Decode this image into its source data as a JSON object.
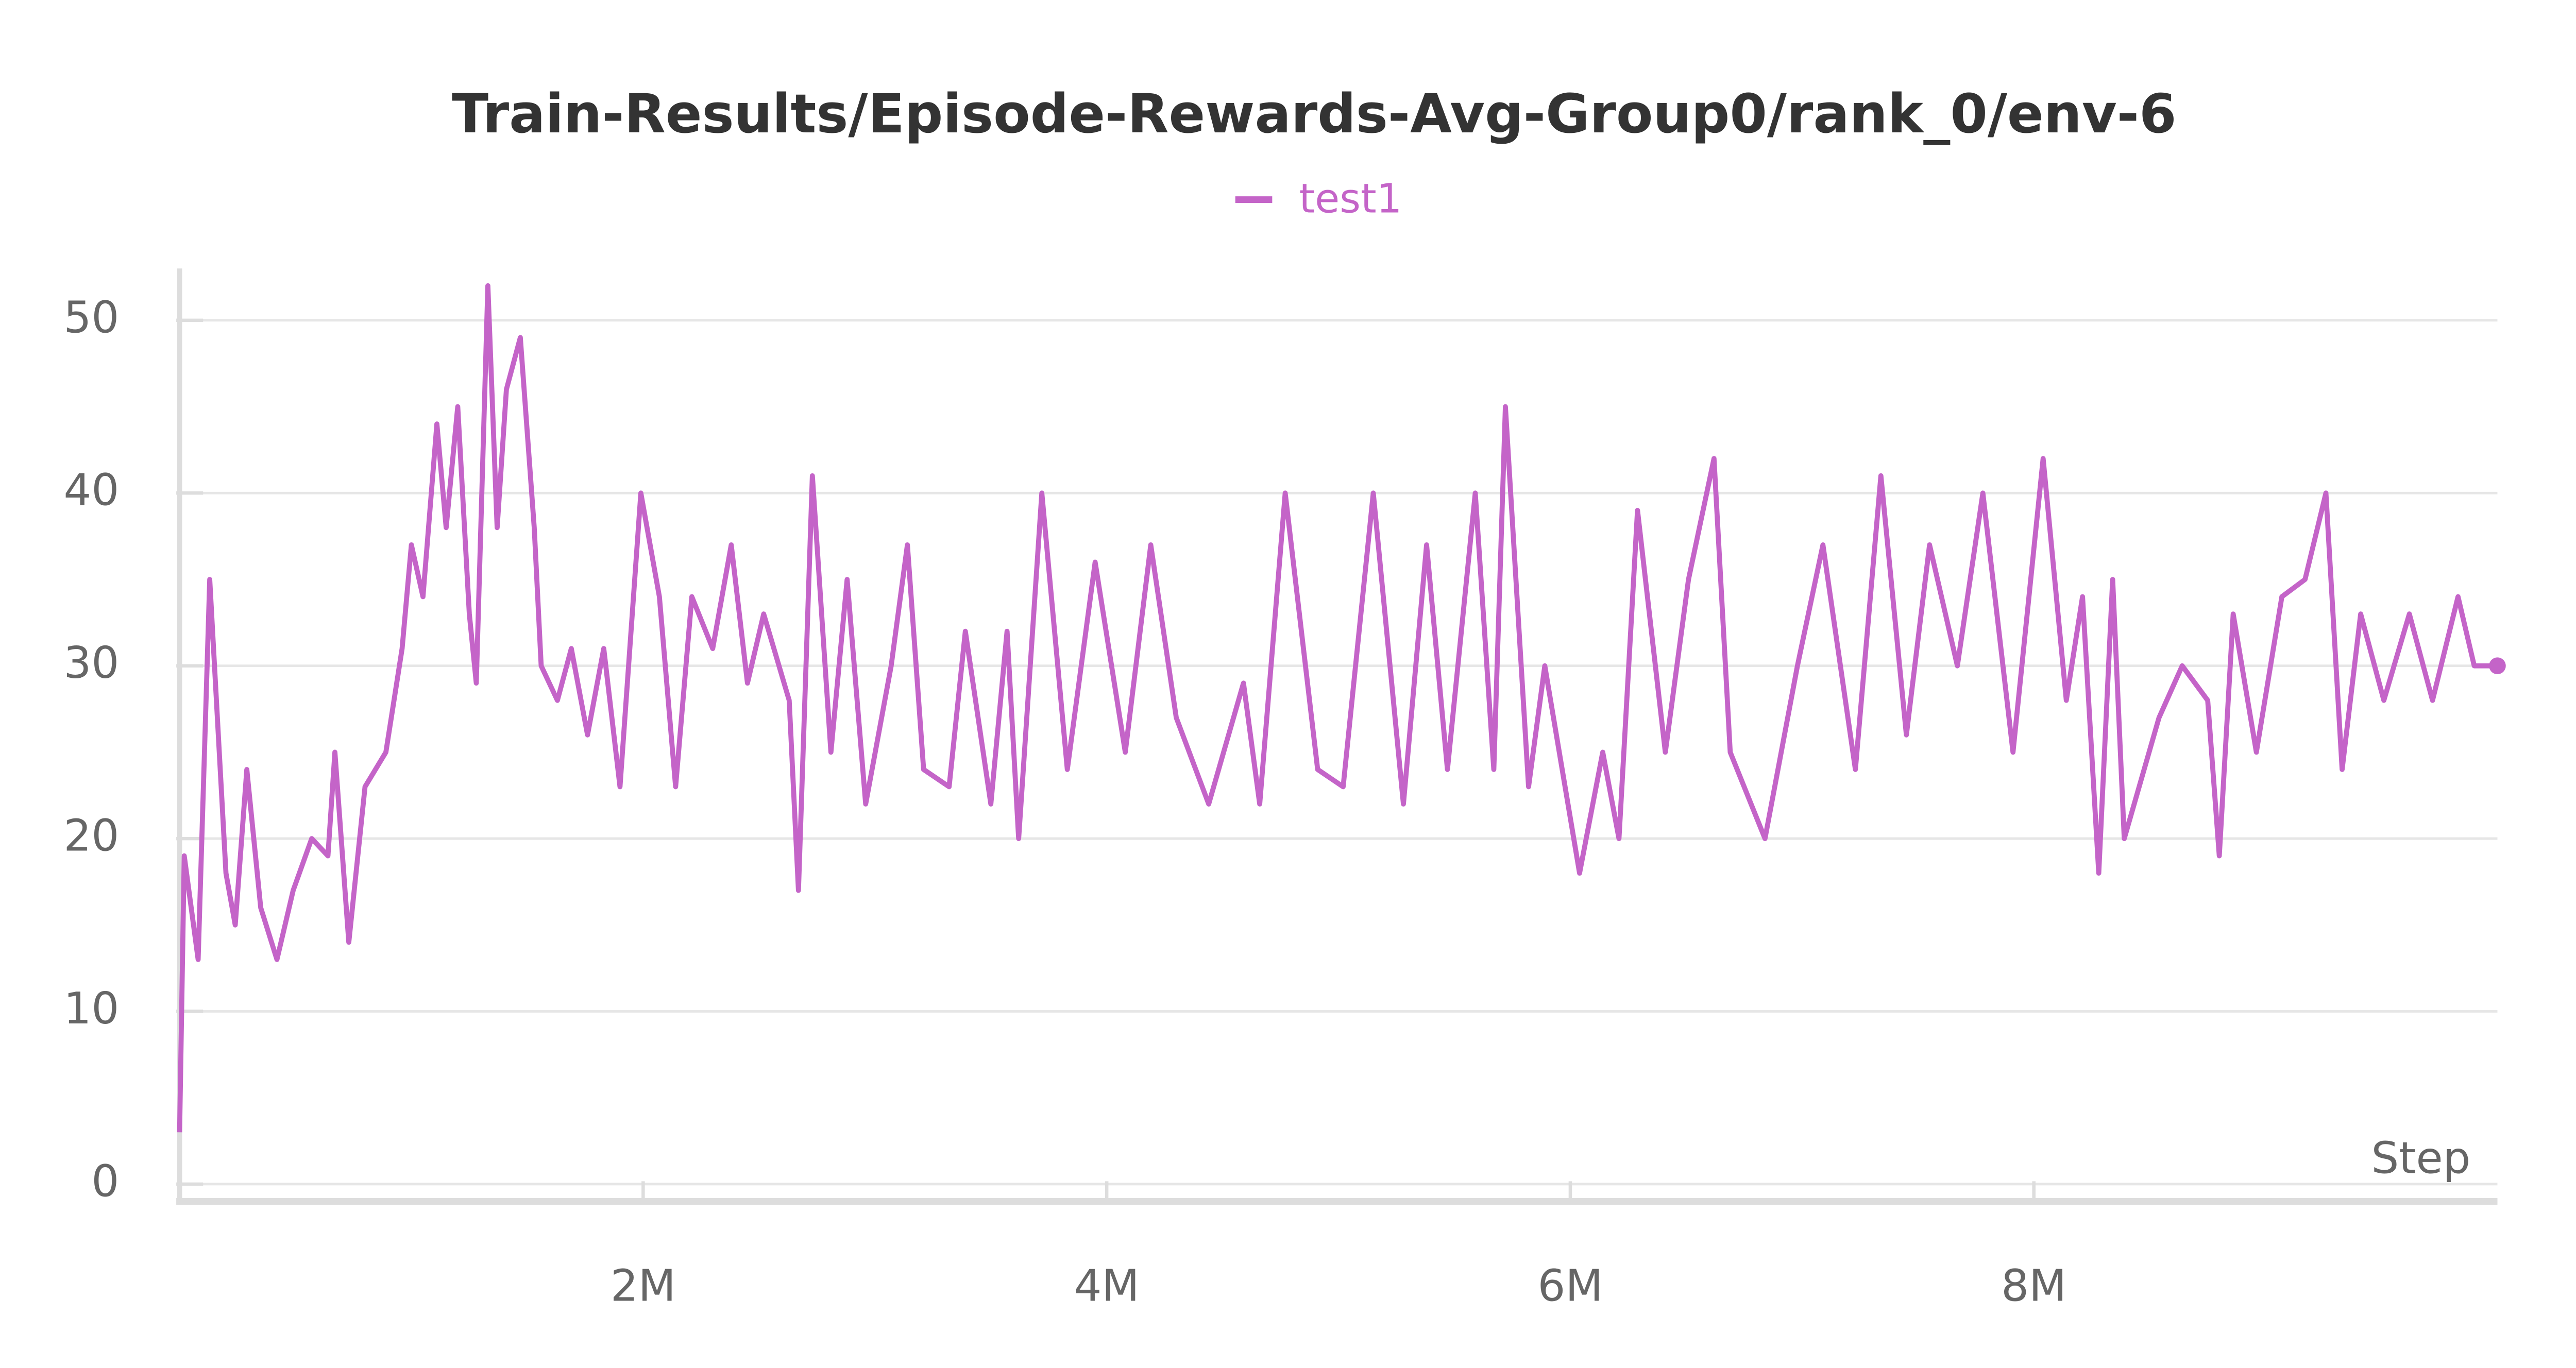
{
  "chart_data": {
    "type": "line",
    "title": "Train-Results/Episode-Rewards-Avg-Group0/rank_0/env-6",
    "xlabel": "Step",
    "series": [
      {
        "name": "test1",
        "color": "#c464c8",
        "x": [
          0,
          20000,
          80000,
          130000,
          200000,
          240000,
          290000,
          350000,
          420000,
          490000,
          570000,
          640000,
          670000,
          730000,
          800000,
          890000,
          960000,
          1000000,
          1050000,
          1110000,
          1150000,
          1200000,
          1250000,
          1280000,
          1330000,
          1370000,
          1410000,
          1470000,
          1530000,
          1560000,
          1630000,
          1690000,
          1760000,
          1830000,
          1900000,
          1990000,
          2070000,
          2140000,
          2210000,
          2300000,
          2380000,
          2450000,
          2520000,
          2630000,
          2670000,
          2730000,
          2810000,
          2880000,
          2960000,
          3070000,
          3140000,
          3210000,
          3320000,
          3390000,
          3500000,
          3570000,
          3620000,
          3720000,
          3830000,
          3950000,
          4080000,
          4190000,
          4300000,
          4440000,
          4590000,
          4660000,
          4770000,
          4910000,
          5020000,
          5150000,
          5280000,
          5380000,
          5470000,
          5590000,
          5670000,
          5720000,
          5820000,
          5890000,
          6040000,
          6140000,
          6210000,
          6290000,
          6410000,
          6510000,
          6620000,
          6690000,
          6840000,
          6980000,
          7090000,
          7230000,
          7340000,
          7450000,
          7550000,
          7670000,
          7780000,
          7910000,
          8040000,
          8140000,
          8210000,
          8280000,
          8340000,
          8390000,
          8540000,
          8640000,
          8750000,
          8800000,
          8860000,
          8960000,
          9070000,
          9170000,
          9260000,
          9330000,
          9410000,
          9510000,
          9620000,
          9720000,
          9830000,
          9900000,
          10000000
        ],
        "values": [
          3,
          19,
          13,
          35,
          18,
          15,
          24,
          16,
          13,
          17,
          20,
          19,
          25,
          14,
          23,
          25,
          31,
          37,
          34,
          44,
          38,
          45,
          33,
          29,
          52,
          38,
          46,
          49,
          38,
          30,
          28,
          31,
          26,
          31,
          23,
          40,
          34,
          23,
          34,
          31,
          37,
          29,
          33,
          28,
          17,
          41,
          25,
          35,
          22,
          30,
          37,
          24,
          23,
          32,
          22,
          32,
          20,
          40,
          24,
          36,
          25,
          37,
          27,
          22,
          29,
          22,
          40,
          24,
          23,
          40,
          22,
          37,
          24,
          40,
          24,
          45,
          23,
          30,
          18,
          25,
          20,
          39,
          25,
          35,
          42,
          25,
          20,
          30,
          37,
          24,
          41,
          26,
          37,
          30,
          40,
          25,
          42,
          28,
          34,
          18,
          35,
          20,
          27,
          30,
          28,
          19,
          33,
          25,
          34,
          35,
          40,
          24,
          33,
          28,
          33,
          28,
          34,
          30,
          30
        ]
      }
    ],
    "xlim": [
      0,
      10000000
    ],
    "xticks": [
      {
        "value": 2000000,
        "label": "2M"
      },
      {
        "value": 4000000,
        "label": "4M"
      },
      {
        "value": 6000000,
        "label": "6M"
      },
      {
        "value": 8000000,
        "label": "8M"
      }
    ],
    "ylim": [
      -1,
      53
    ],
    "yticks": [
      0,
      10,
      20,
      30,
      40,
      50
    ],
    "grid": true
  }
}
